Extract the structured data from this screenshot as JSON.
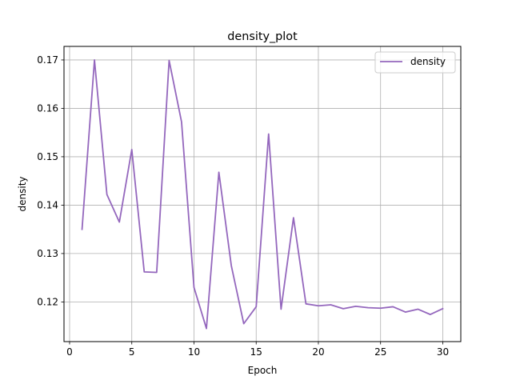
{
  "chart_data": {
    "type": "line",
    "title": "density_plot",
    "xlabel": "Epoch",
    "ylabel": "density",
    "xlim": [
      -0.45,
      31.45
    ],
    "ylim": [
      0.1118,
      0.1728
    ],
    "xticks": [
      0,
      5,
      10,
      15,
      20,
      25,
      30
    ],
    "yticks": [
      0.12,
      0.13,
      0.14,
      0.15,
      0.16,
      0.17
    ],
    "ytick_labels": [
      "0.12",
      "0.13",
      "0.14",
      "0.15",
      "0.16",
      "0.17"
    ],
    "grid": true,
    "legend": {
      "position": "upper right",
      "entries": [
        "density"
      ]
    },
    "series": [
      {
        "name": "density",
        "color": "#9467bd",
        "x": [
          1,
          2,
          3,
          4,
          5,
          6,
          7,
          8,
          9,
          10,
          11,
          12,
          13,
          14,
          15,
          16,
          17,
          18,
          19,
          20,
          21,
          22,
          23,
          24,
          25,
          26,
          27,
          28,
          29,
          30
        ],
        "y": [
          0.135,
          0.17,
          0.1422,
          0.1365,
          0.1515,
          0.1262,
          0.1261,
          0.1699,
          0.1572,
          0.123,
          0.1145,
          0.1468,
          0.1275,
          0.1155,
          0.119,
          0.1547,
          0.1185,
          0.1374,
          0.1196,
          0.1192,
          0.1194,
          0.1186,
          0.1191,
          0.1188,
          0.1187,
          0.119,
          0.1179,
          0.1185,
          0.1174,
          0.1186
        ]
      }
    ]
  }
}
